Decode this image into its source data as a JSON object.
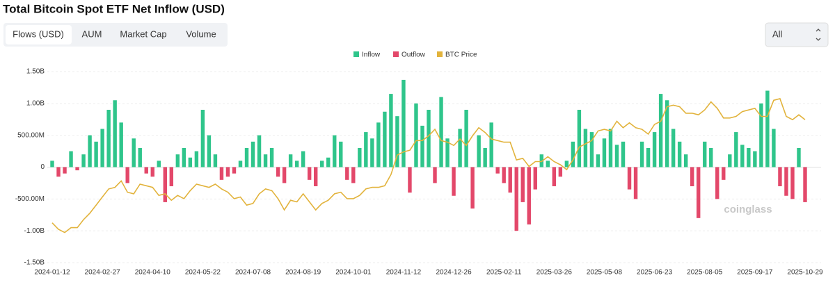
{
  "tabs": [
    "Flows (USD)",
    "AUM",
    "Market Cap",
    "Volume"
  ],
  "range_select": "All",
  "watermark": "coinglass",
  "chart_data": {
    "type": "bar",
    "title": "Total Bitcoin Spot ETF Net Inflow (USD)",
    "categories": [
      "2024-01-12",
      null,
      null,
      null,
      null,
      null,
      null,
      null,
      "2024-02-27",
      null,
      null,
      null,
      null,
      null,
      null,
      null,
      "2024-04-10",
      null,
      null,
      null,
      null,
      null,
      null,
      null,
      "2024-05-22",
      null,
      null,
      null,
      null,
      null,
      null,
      null,
      "2024-07-08",
      null,
      null,
      null,
      null,
      null,
      null,
      null,
      "2024-08-19",
      null,
      null,
      null,
      null,
      null,
      null,
      null,
      "2024-10-01",
      null,
      null,
      null,
      null,
      null,
      null,
      null,
      "2024-11-12",
      null,
      null,
      null,
      null,
      null,
      null,
      null,
      "2024-12-26",
      null,
      null,
      null,
      null,
      null,
      null,
      null,
      "2025-02-11",
      null,
      null,
      null,
      null,
      null,
      null,
      null,
      "2025-03-26",
      null,
      null,
      null,
      null,
      null,
      null,
      null,
      "2025-05-08",
      null,
      null,
      null,
      null,
      null,
      null,
      null,
      "2025-06-23",
      null,
      null,
      null,
      null,
      null,
      null,
      null,
      "2025-08-05",
      null,
      null,
      null,
      null,
      null,
      null,
      null,
      "2025-09-17",
      null,
      null,
      null,
      null,
      null,
      null,
      null,
      "2025-10-29"
    ],
    "series": [
      {
        "name": "Inflow",
        "color": "#2fc58b",
        "values": [
          100,
          null,
          null,
          250,
          null,
          200,
          500,
          400,
          600,
          900,
          1050,
          700,
          null,
          450,
          300,
          null,
          null,
          100,
          null,
          null,
          200,
          300,
          150,
          250,
          900,
          500,
          200,
          null,
          null,
          null,
          100,
          300,
          400,
          500,
          200,
          300,
          null,
          null,
          200,
          100,
          250,
          null,
          null,
          100,
          150,
          500,
          400,
          null,
          null,
          300,
          550,
          450,
          700,
          870,
          1150,
          800,
          1370,
          null,
          1000,
          650,
          900,
          null,
          1100,
          450,
          null,
          600,
          900,
          null,
          500,
          300,
          700,
          null,
          null,
          null,
          null,
          null,
          null,
          null,
          200,
          100,
          null,
          null,
          100,
          400,
          900,
          600,
          550,
          200,
          450,
          600,
          350,
          400,
          null,
          null,
          400,
          300,
          550,
          1150,
          1050,
          600,
          400,
          200,
          null,
          null,
          400,
          300,
          null,
          null,
          200,
          550,
          350,
          300,
          250,
          1000,
          1200,
          600,
          null,
          null,
          null,
          300,
          null
        ]
      },
      {
        "name": "Outflow",
        "color": "#e3486a",
        "values": [
          null,
          -150,
          -100,
          null,
          -50,
          null,
          null,
          null,
          null,
          null,
          null,
          null,
          -250,
          null,
          null,
          -100,
          -150,
          null,
          -550,
          -300,
          null,
          null,
          null,
          null,
          null,
          null,
          null,
          -200,
          -150,
          -100,
          null,
          null,
          null,
          null,
          null,
          null,
          -150,
          -250,
          null,
          null,
          null,
          -200,
          -300,
          null,
          null,
          null,
          null,
          -200,
          -250,
          null,
          null,
          null,
          null,
          null,
          null,
          null,
          null,
          -400,
          null,
          null,
          null,
          -250,
          null,
          null,
          -450,
          null,
          null,
          -650,
          null,
          null,
          null,
          -100,
          -250,
          -400,
          -1000,
          -550,
          -900,
          -350,
          null,
          null,
          -300,
          -150,
          null,
          null,
          null,
          null,
          null,
          null,
          null,
          null,
          null,
          null,
          -350,
          -500,
          null,
          null,
          null,
          null,
          null,
          null,
          null,
          null,
          -300,
          -800,
          null,
          null,
          -500,
          -200,
          null,
          null,
          null,
          null,
          null,
          null,
          null,
          null,
          -300,
          -450,
          -500,
          null,
          -550
        ]
      },
      {
        "name": "BTC Price",
        "color": "#e2b33c",
        "type": "line",
        "axis": "y2",
        "values": [
          46000,
          42000,
          40000,
          43000,
          43000,
          48000,
          52000,
          57000,
          62000,
          67000,
          68000,
          72000,
          65000,
          64000,
          70000,
          69000,
          68000,
          63000,
          64000,
          60000,
          63000,
          61000,
          66000,
          70000,
          69000,
          68000,
          70000,
          67000,
          65000,
          61000,
          62000,
          57000,
          58000,
          64000,
          67000,
          66000,
          61000,
          54000,
          60000,
          59000,
          64000,
          59000,
          54000,
          58000,
          60000,
          64000,
          65000,
          61000,
          61000,
          63000,
          67000,
          68000,
          68000,
          69000,
          76000,
          88000,
          90000,
          91000,
          97000,
          97000,
          100000,
          104000,
          97000,
          96000,
          94000,
          98000,
          94000,
          100000,
          105000,
          102000,
          98000,
          97000,
          96000,
          96000,
          85000,
          86000,
          81000,
          84000,
          84000,
          87000,
          84000,
          82000,
          79000,
          85000,
          93000,
          95000,
          97000,
          103000,
          104000,
          103000,
          109000,
          105000,
          108000,
          105000,
          104000,
          101000,
          107000,
          109000,
          118000,
          119000,
          118000,
          114000,
          114000,
          113000,
          116000,
          121000,
          117000,
          111000,
          111000,
          112000,
          115000,
          116000,
          117000,
          112000,
          112000,
          122000,
          123000,
          112000,
          110000,
          113000,
          110000
        ]
      }
    ],
    "ylim": [
      -1500,
      1500
    ],
    "yticks": [
      {
        "value": 1500,
        "label": "1.50B"
      },
      {
        "value": 1000,
        "label": "1.00B"
      },
      {
        "value": 500,
        "label": "500.00M"
      },
      0,
      {
        "value": -500,
        "label": "-500.00M"
      },
      {
        "value": -1000,
        "label": "-1.00B"
      },
      {
        "value": -1500,
        "label": "-1.50B"
      }
    ],
    "y2lim": [
      21300,
      139800
    ],
    "grid": true,
    "legend": "top"
  }
}
